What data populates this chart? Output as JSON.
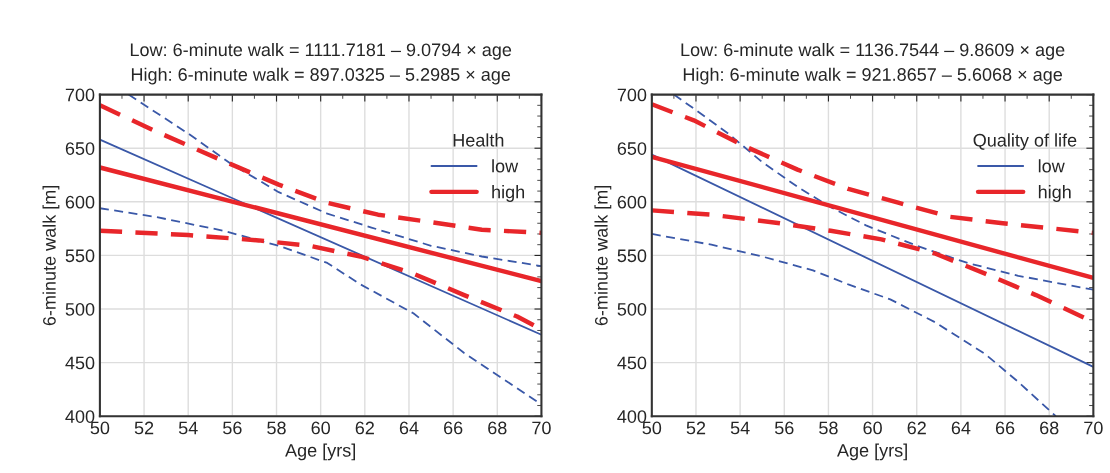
{
  "chart_data": [
    {
      "type": "line",
      "title": "Low: 6-minute walk = 1111.7181 – 9.0794 × age\nHigh: 6-minute walk = 897.0325 – 5.2985 × age",
      "xlabel": "Age [yrs]",
      "ylabel": "6-minute walk [m]",
      "legend_title": "Health",
      "legend": "top right",
      "grid": true,
      "xlim": [
        50,
        70
      ],
      "ylim": [
        400,
        700
      ],
      "xticks": [
        50,
        52,
        54,
        56,
        58,
        60,
        62,
        64,
        66,
        68,
        70
      ],
      "yticks": [
        400,
        450,
        500,
        550,
        600,
        650,
        700
      ],
      "series": [
        {
          "name": "low",
          "color": "#3a58a8",
          "line_style": "solid",
          "x": [
            50,
            70
          ],
          "values": [
            658,
            476
          ]
        },
        {
          "color": "#3a58a8",
          "line_style": "dashed",
          "x": [
            51.3,
            54.05,
            55.9,
            58.1,
            60.3,
            62.3,
            65,
            67.3,
            70
          ],
          "values": [
            700,
            663,
            636,
            609,
            589,
            576,
            559,
            549,
            540
          ]
        },
        {
          "color": "#3a58a8",
          "line_style": "dashed",
          "x": [
            50,
            52.5,
            55.6,
            58.1,
            60.3,
            61.8,
            64.2,
            66.5,
            70
          ],
          "values": [
            594,
            586,
            573,
            559,
            543,
            523,
            496,
            459,
            411
          ]
        },
        {
          "name": "high",
          "color": "#e8262a",
          "line_style": "solid",
          "x": [
            50,
            70
          ],
          "values": [
            632,
            526
          ]
        },
        {
          "color": "#e8262a",
          "line_style": "dashed",
          "x": [
            50,
            52.5,
            55.6,
            58.1,
            60.3,
            62.6,
            65,
            67.3,
            70
          ],
          "values": [
            690,
            666,
            638,
            616,
            599,
            588,
            581,
            574,
            571
          ]
        },
        {
          "color": "#e8262a",
          "line_style": "dashed",
          "x": [
            50,
            54,
            57.2,
            59.5,
            61.8,
            64.2,
            66.5,
            68.9,
            70
          ],
          "values": [
            573,
            569,
            564,
            559,
            549,
            533,
            513,
            493,
            481
          ]
        }
      ]
    },
    {
      "type": "line",
      "title": "Low: 6-minute walk = 1136.7544 – 9.8609 × age\nHigh: 6-minute walk = 921.8657 – 5.6068 × age",
      "xlabel": "Age [yrs]",
      "ylabel": "6-minute walk [m]",
      "legend_title": "Quality of life",
      "legend": "top right",
      "grid": true,
      "xlim": [
        50,
        70
      ],
      "ylim": [
        400,
        700
      ],
      "xticks": [
        50,
        52,
        54,
        56,
        58,
        60,
        62,
        64,
        66,
        68,
        70
      ],
      "yticks": [
        400,
        450,
        500,
        550,
        600,
        650,
        700
      ],
      "series": [
        {
          "name": "low",
          "color": "#3a58a8",
          "line_style": "solid",
          "x": [
            50,
            70
          ],
          "values": [
            644,
            446
          ]
        },
        {
          "color": "#3a58a8",
          "line_style": "dashed",
          "x": [
            51,
            51.9,
            53.5,
            55,
            56.6,
            58.1,
            59.7,
            62,
            64.3,
            66.6,
            70
          ],
          "values": [
            700,
            687,
            663,
            637,
            614,
            595,
            578,
            559,
            543,
            531,
            518
          ]
        },
        {
          "color": "#3a58a8",
          "line_style": "dashed",
          "x": [
            50,
            52.7,
            55,
            57.3,
            58.9,
            60.8,
            62.8,
            65.1,
            66.6,
            68.3
          ],
          "values": [
            570,
            560,
            549,
            536,
            523,
            509,
            488,
            458,
            432,
            400
          ]
        },
        {
          "name": "high",
          "color": "#e8262a",
          "line_style": "solid",
          "x": [
            50,
            70
          ],
          "values": [
            642,
            529
          ]
        },
        {
          "color": "#e8262a",
          "line_style": "dashed",
          "x": [
            50,
            51.9,
            54.3,
            56.6,
            58.9,
            61.2,
            63.5,
            65.9,
            68.2,
            70
          ],
          "values": [
            691,
            676,
            651,
            630,
            612,
            599,
            586,
            580,
            575,
            571
          ]
        },
        {
          "color": "#e8262a",
          "line_style": "dashed",
          "x": [
            50,
            52.7,
            55.8,
            58.1,
            60.4,
            62.8,
            65.1,
            67.4,
            70
          ],
          "values": [
            592,
            588,
            580,
            573,
            565,
            552,
            533,
            513,
            488
          ]
        }
      ]
    }
  ]
}
